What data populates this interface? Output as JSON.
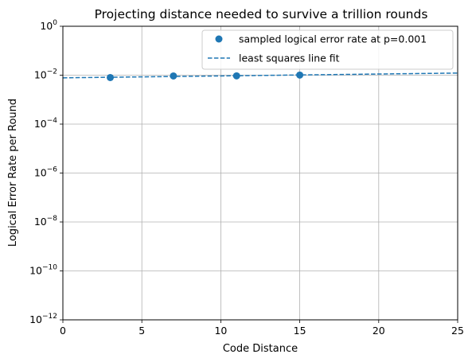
{
  "chart_data": {
    "type": "scatter",
    "title": "Projecting distance needed to survive a trillion rounds",
    "xlabel": "Code Distance",
    "ylabel": "Logical Error Rate per Round",
    "xlim": [
      0,
      25
    ],
    "ylim": [
      1e-12,
      1
    ],
    "y_scale": "log",
    "grid": true,
    "legend_position": "top-right",
    "x_ticks": [
      0,
      5,
      10,
      15,
      20,
      25
    ],
    "y_ticks": [
      {
        "mantissa": "10",
        "exp": "0"
      },
      {
        "mantissa": "10",
        "exp": "−2"
      },
      {
        "mantissa": "10",
        "exp": "−4"
      },
      {
        "mantissa": "10",
        "exp": "−6"
      },
      {
        "mantissa": "10",
        "exp": "−8"
      },
      {
        "mantissa": "10",
        "exp": "−10"
      },
      {
        "mantissa": "10",
        "exp": "−12"
      }
    ],
    "series": [
      {
        "name": "sampled logical error rate at p=0.001",
        "kind": "scatter",
        "color": "#1f77b4",
        "x": [
          3,
          7,
          11,
          15
        ],
        "y": [
          0.008,
          0.0093,
          0.0094,
          0.0101
        ]
      },
      {
        "name": "least squares line fit",
        "kind": "line",
        "style": "dashed",
        "color": "#1f77b4",
        "x": [
          0,
          25
        ],
        "y": [
          0.0078,
          0.0122
        ]
      }
    ]
  }
}
